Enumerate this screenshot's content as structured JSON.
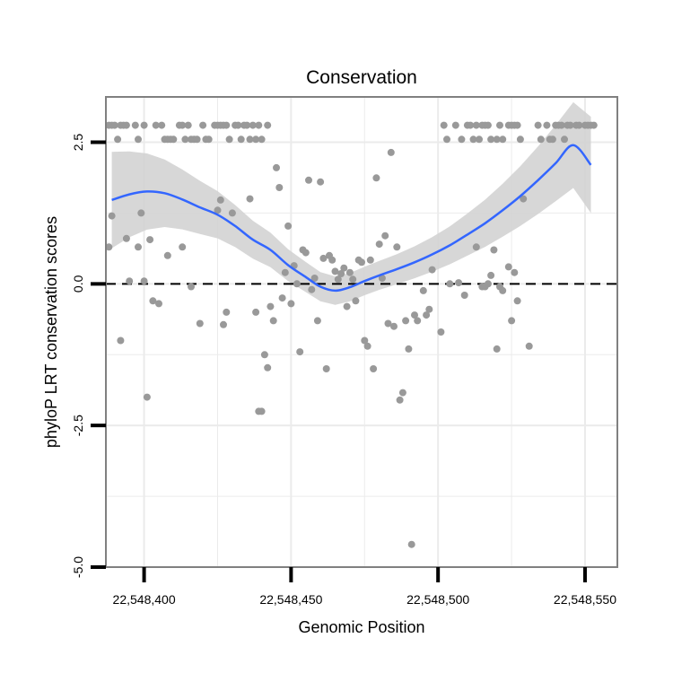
{
  "chart_data": {
    "type": "scatter",
    "title": "Conservation",
    "xlabel": "Genomic Position",
    "ylabel": "phyloP LRT conservation scores",
    "xlim": [
      22548387,
      22548561
    ],
    "ylim": [
      -5.0,
      3.3
    ],
    "x_ticks": [
      22548400,
      22548450,
      22548500,
      22548550
    ],
    "x_tick_labels": [
      "22,548,400",
      "22,548,450",
      "22,548,500",
      "22,548,550"
    ],
    "y_ticks": [
      -5.0,
      -2.5,
      0.0,
      2.5
    ],
    "y_tick_labels": [
      "-5.0",
      "-2.5",
      "0.0",
      "2.5"
    ],
    "reference_line": {
      "y": 0,
      "style": "dashed"
    },
    "grid": true,
    "colors": {
      "points": "#999999",
      "smooth": "#3366FF",
      "ribbon": "#D3D3D3",
      "panel_border": "#808080",
      "grid": "#EBEBEB"
    },
    "points": [
      [
        22548388,
        2.8
      ],
      [
        22548389,
        2.8
      ],
      [
        22548390,
        2.8
      ],
      [
        22548391,
        2.55
      ],
      [
        22548392,
        2.8
      ],
      [
        22548393,
        2.8
      ],
      [
        22548394,
        2.8
      ],
      [
        22548397,
        2.8
      ],
      [
        22548398,
        2.55
      ],
      [
        22548400,
        2.8
      ],
      [
        22548404,
        2.8
      ],
      [
        22548406,
        2.8
      ],
      [
        22548407,
        2.55
      ],
      [
        22548408,
        2.55
      ],
      [
        22548409,
        2.55
      ],
      [
        22548410,
        2.55
      ],
      [
        22548412,
        2.8
      ],
      [
        22548413,
        2.8
      ],
      [
        22548414,
        2.55
      ],
      [
        22548415,
        2.8
      ],
      [
        22548416,
        2.55
      ],
      [
        22548417,
        2.55
      ],
      [
        22548418,
        2.55
      ],
      [
        22548420,
        2.8
      ],
      [
        22548421,
        2.55
      ],
      [
        22548422,
        2.55
      ],
      [
        22548424,
        2.8
      ],
      [
        22548425,
        2.8
      ],
      [
        22548426,
        2.8
      ],
      [
        22548427,
        2.8
      ],
      [
        22548428,
        2.8
      ],
      [
        22548429,
        2.55
      ],
      [
        22548431,
        2.8
      ],
      [
        22548432,
        2.8
      ],
      [
        22548433,
        2.55
      ],
      [
        22548434,
        2.8
      ],
      [
        22548435,
        2.8
      ],
      [
        22548436,
        2.55
      ],
      [
        22548437,
        2.8
      ],
      [
        22548438,
        2.55
      ],
      [
        22548439,
        2.8
      ],
      [
        22548440,
        2.55
      ],
      [
        22548442,
        2.8
      ],
      [
        22548502,
        2.8
      ],
      [
        22548503,
        2.55
      ],
      [
        22548506,
        2.8
      ],
      [
        22548508,
        2.55
      ],
      [
        22548510,
        2.8
      ],
      [
        22548511,
        2.8
      ],
      [
        22548512,
        2.55
      ],
      [
        22548513,
        2.8
      ],
      [
        22548514,
        2.55
      ],
      [
        22548515,
        2.8
      ],
      [
        22548516,
        2.8
      ],
      [
        22548517,
        2.8
      ],
      [
        22548518,
        2.55
      ],
      [
        22548520,
        2.55
      ],
      [
        22548521,
        2.8
      ],
      [
        22548522,
        2.55
      ],
      [
        22548524,
        2.8
      ],
      [
        22548525,
        2.8
      ],
      [
        22548526,
        2.8
      ],
      [
        22548527,
        2.8
      ],
      [
        22548528,
        2.55
      ],
      [
        22548534,
        2.8
      ],
      [
        22548535,
        2.55
      ],
      [
        22548537,
        2.8
      ],
      [
        22548538,
        2.55
      ],
      [
        22548539,
        2.55
      ],
      [
        22548540,
        2.8
      ],
      [
        22548541,
        2.8
      ],
      [
        22548542,
        2.8
      ],
      [
        22548543,
        2.55
      ],
      [
        22548544,
        2.8
      ],
      [
        22548545,
        2.8
      ],
      [
        22548547,
        2.8
      ],
      [
        22548548,
        2.8
      ],
      [
        22548550,
        2.8
      ],
      [
        22548551,
        2.8
      ],
      [
        22548552,
        2.8
      ],
      [
        22548553,
        2.8
      ],
      [
        22548388,
        0.65
      ],
      [
        22548389,
        1.2
      ],
      [
        22548392,
        -1.0
      ],
      [
        22548394,
        0.8
      ],
      [
        22548395,
        0.05
      ],
      [
        22548398,
        0.65
      ],
      [
        22548399,
        1.25
      ],
      [
        22548400,
        0.05
      ],
      [
        22548401,
        -2.0
      ],
      [
        22548402,
        0.78
      ],
      [
        22548403,
        -0.3
      ],
      [
        22548405,
        -0.35
      ],
      [
        22548408,
        0.5
      ],
      [
        22548413,
        0.65
      ],
      [
        22548416,
        -0.05
      ],
      [
        22548419,
        -0.7
      ],
      [
        22548425,
        1.3
      ],
      [
        22548426,
        1.48
      ],
      [
        22548427,
        -0.72
      ],
      [
        22548428,
        -0.5
      ],
      [
        22548430,
        1.25
      ],
      [
        22548436,
        1.5
      ],
      [
        22548438,
        -0.5
      ],
      [
        22548439,
        -2.25
      ],
      [
        22548440,
        -2.25
      ],
      [
        22548441,
        -1.25
      ],
      [
        22548442,
        -1.48
      ],
      [
        22548443,
        -0.4
      ],
      [
        22548444,
        -0.65
      ],
      [
        22548445,
        2.05
      ],
      [
        22548446,
        1.7
      ],
      [
        22548447,
        -0.25
      ],
      [
        22548448,
        0.2
      ],
      [
        22548449,
        1.02
      ],
      [
        22548450,
        -0.35
      ],
      [
        22548451,
        0.32
      ],
      [
        22548452,
        0.0
      ],
      [
        22548453,
        -1.2
      ],
      [
        22548454,
        0.6
      ],
      [
        22548455,
        0.55
      ],
      [
        22548456,
        1.83
      ],
      [
        22548457,
        -0.1
      ],
      [
        22548458,
        0.1
      ],
      [
        22548459,
        -0.65
      ],
      [
        22548460,
        1.8
      ],
      [
        22548461,
        0.45
      ],
      [
        22548462,
        -1.5
      ],
      [
        22548463,
        0.5
      ],
      [
        22548464,
        0.42
      ],
      [
        22548465,
        0.22
      ],
      [
        22548466,
        0.08
      ],
      [
        22548467,
        0.18
      ],
      [
        22548468,
        0.28
      ],
      [
        22548469,
        -0.4
      ],
      [
        22548470,
        0.2
      ],
      [
        22548471,
        0.08
      ],
      [
        22548472,
        -0.3
      ],
      [
        22548473,
        0.42
      ],
      [
        22548474,
        0.38
      ],
      [
        22548475,
        -1.0
      ],
      [
        22548476,
        -1.1
      ],
      [
        22548477,
        0.42
      ],
      [
        22548478,
        -1.5
      ],
      [
        22548479,
        1.87
      ],
      [
        22548480,
        0.7
      ],
      [
        22548481,
        0.1
      ],
      [
        22548482,
        0.85
      ],
      [
        22548483,
        -0.7
      ],
      [
        22548484,
        2.32
      ],
      [
        22548485,
        -0.75
      ],
      [
        22548486,
        0.65
      ],
      [
        22548487,
        -2.05
      ],
      [
        22548488,
        -1.92
      ],
      [
        22548489,
        -0.65
      ],
      [
        22548490,
        -1.15
      ],
      [
        22548491,
        -4.6
      ],
      [
        22548492,
        -0.55
      ],
      [
        22548493,
        -0.65
      ],
      [
        22548495,
        -0.12
      ],
      [
        22548496,
        -0.55
      ],
      [
        22548497,
        -0.45
      ],
      [
        22548498,
        0.25
      ],
      [
        22548501,
        -0.85
      ],
      [
        22548504,
        0.0
      ],
      [
        22548507,
        0.02
      ],
      [
        22548509,
        -0.2
      ],
      [
        22548513,
        0.65
      ],
      [
        22548515,
        -0.05
      ],
      [
        22548516,
        -0.05
      ],
      [
        22548517,
        0.0
      ],
      [
        22548518,
        0.15
      ],
      [
        22548519,
        0.6
      ],
      [
        22548520,
        -1.15
      ],
      [
        22548521,
        -0.05
      ],
      [
        22548522,
        -0.12
      ],
      [
        22548524,
        0.3
      ],
      [
        22548525,
        -0.65
      ],
      [
        22548526,
        0.2
      ],
      [
        22548527,
        -0.3
      ],
      [
        22548529,
        1.5
      ],
      [
        22548531,
        -1.1
      ]
    ],
    "smooth": [
      [
        22548389,
        1.48
      ],
      [
        22548395,
        1.58
      ],
      [
        22548401,
        1.63
      ],
      [
        22548407,
        1.6
      ],
      [
        22548413,
        1.49
      ],
      [
        22548419,
        1.35
      ],
      [
        22548425,
        1.22
      ],
      [
        22548431,
        1.02
      ],
      [
        22548437,
        0.78
      ],
      [
        22548443,
        0.6
      ],
      [
        22548449,
        0.33
      ],
      [
        22548455,
        0.12
      ],
      [
        22548460,
        -0.05
      ],
      [
        22548465,
        -0.12
      ],
      [
        22548470,
        -0.06
      ],
      [
        22548475,
        0.05
      ],
      [
        22548480,
        0.15
      ],
      [
        22548486,
        0.26
      ],
      [
        22548492,
        0.38
      ],
      [
        22548498,
        0.52
      ],
      [
        22548504,
        0.68
      ],
      [
        22548510,
        0.87
      ],
      [
        22548516,
        1.07
      ],
      [
        22548522,
        1.3
      ],
      [
        22548528,
        1.55
      ],
      [
        22548534,
        1.83
      ],
      [
        22548540,
        2.13
      ],
      [
        22548546,
        2.45
      ],
      [
        22548552,
        2.1
      ]
    ]
  }
}
